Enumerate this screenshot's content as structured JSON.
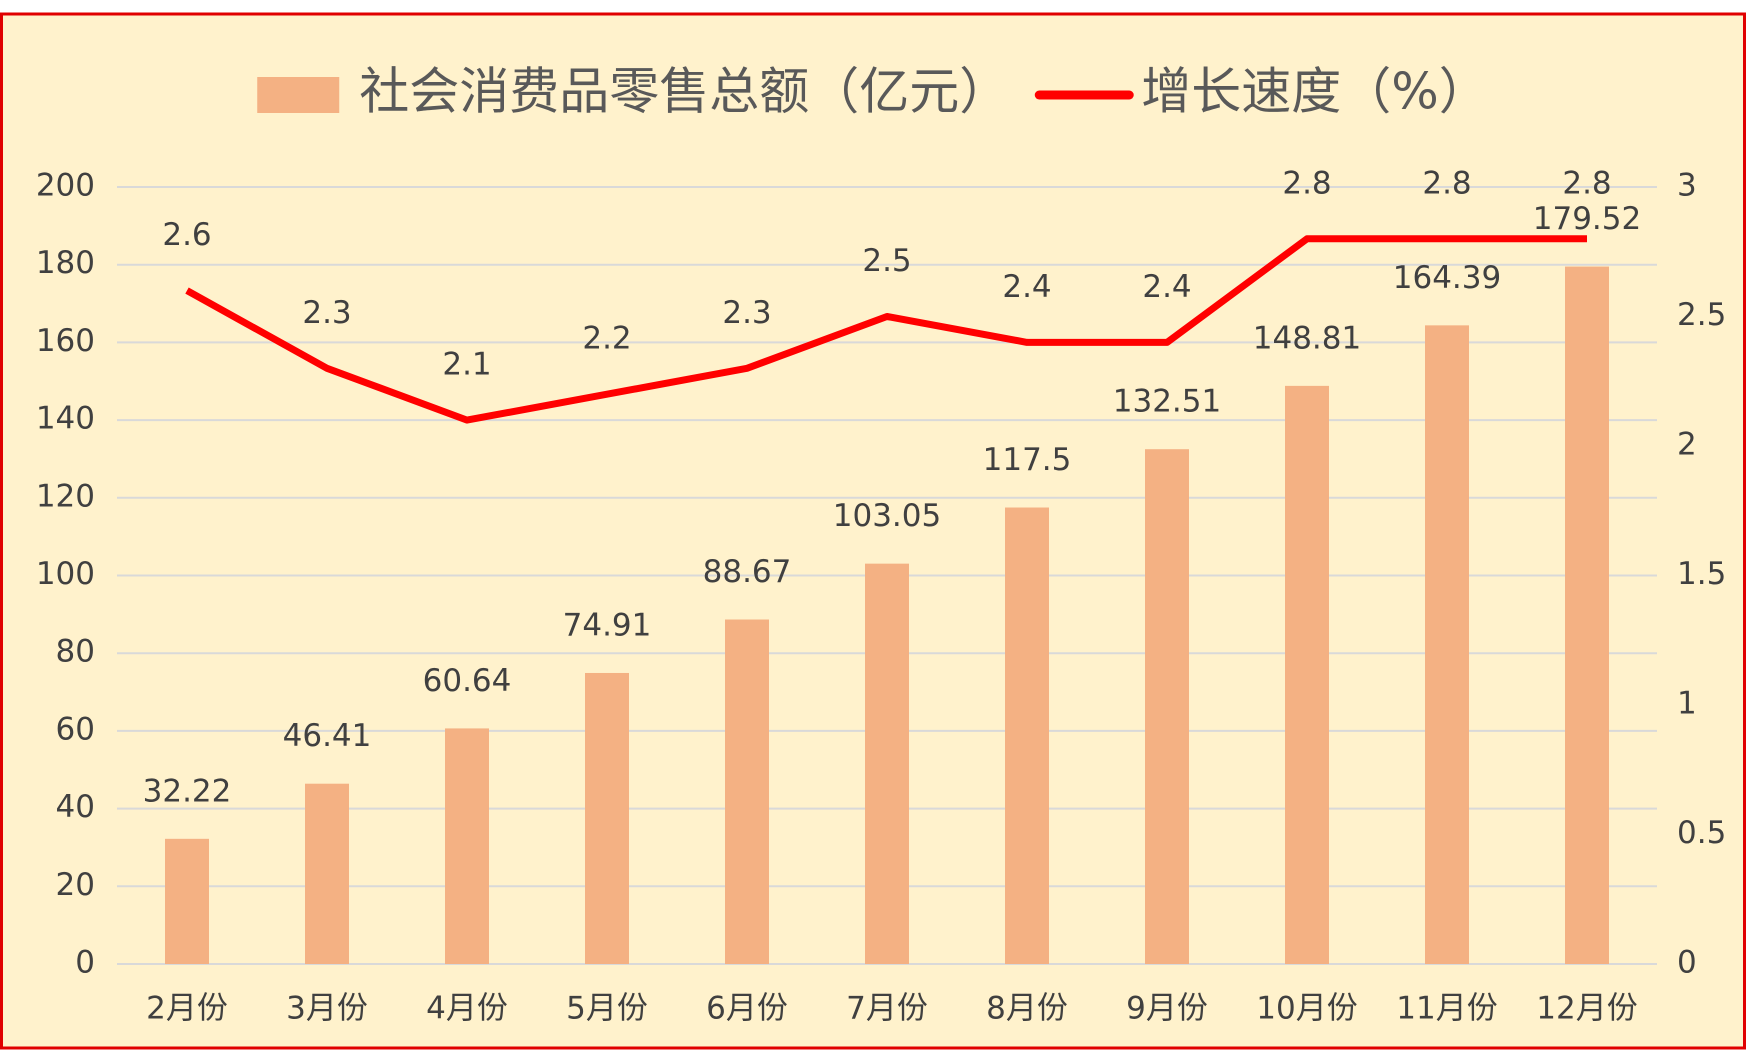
{
  "chart_data": {
    "type": "bar",
    "categories": [
      "2月份",
      "3月份",
      "4月份",
      "5月份",
      "6月份",
      "7月份",
      "8月份",
      "9月份",
      "10月份",
      "11月份",
      "12月份"
    ],
    "series": [
      {
        "name": "社会消费品零售总额（亿元）",
        "type": "bar",
        "color": "#F4B183",
        "values": [
          32.22,
          46.41,
          60.64,
          74.91,
          88.67,
          103.05,
          117.5,
          132.51,
          148.81,
          164.39,
          179.52
        ]
      },
      {
        "name": "增长速度（%）",
        "type": "line",
        "axis": "y2",
        "color": "#FF0000",
        "values": [
          2.6,
          2.3,
          2.1,
          2.2,
          2.3,
          2.5,
          2.4,
          2.4,
          2.8,
          2.8,
          2.8
        ]
      }
    ],
    "ylim": [
      0,
      200
    ],
    "yticks": [
      0,
      20,
      40,
      60,
      80,
      100,
      120,
      140,
      160,
      180,
      200
    ],
    "y2lim": [
      0,
      3
    ],
    "y2ticks": [
      0,
      0.5,
      1,
      1.5,
      2,
      2.5,
      3
    ],
    "grid": true,
    "legend": "top",
    "background": "#FFF2CC"
  }
}
